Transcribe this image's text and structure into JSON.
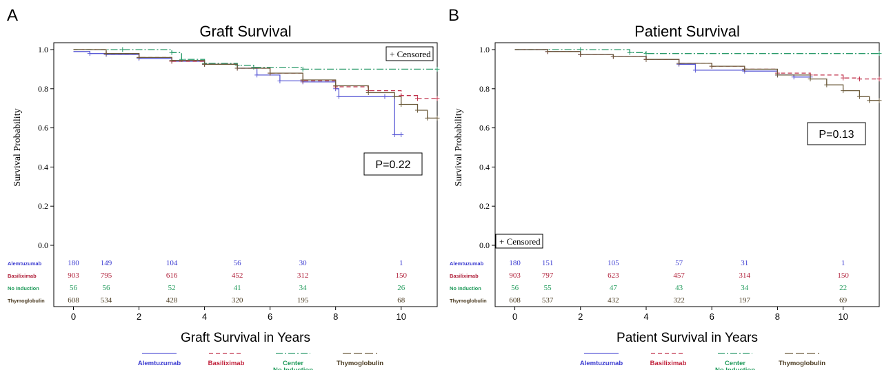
{
  "chart_data": [
    {
      "type": "line",
      "panel_letter": "A",
      "title": "Graft Survival",
      "xlabel": "Graft Survival in Years",
      "ylabel": "Survival Probability",
      "xlim": [
        -0.6,
        11.1
      ],
      "ylim": [
        0,
        1.0
      ],
      "xticks": [
        0,
        2,
        4,
        6,
        8,
        10
      ],
      "yticks": [
        0.0,
        0.2,
        0.4,
        0.6,
        0.8,
        1.0
      ],
      "legend_position": "top-right",
      "censored_label": "+ Censored",
      "pvalue_label": "P=0.22",
      "series": [
        {
          "name": "Alemtuzumab",
          "color": "#5b5bd6",
          "dash": "solid",
          "points": [
            [
              0,
              0.99
            ],
            [
              0.5,
              0.98
            ],
            [
              1,
              0.975
            ],
            [
              2,
              0.955
            ],
            [
              3,
              0.94
            ],
            [
              4,
              0.925
            ],
            [
              5,
              0.905
            ],
            [
              5.6,
              0.87
            ],
            [
              6.3,
              0.84
            ],
            [
              7,
              0.835
            ],
            [
              8,
              0.8
            ],
            [
              8.1,
              0.76
            ],
            [
              9.5,
              0.76
            ],
            [
              9.8,
              0.565
            ],
            [
              10,
              0.565
            ]
          ]
        },
        {
          "name": "Basiliximab",
          "color": "#c0304a",
          "dash": "6,4",
          "points": [
            [
              0,
              1.0
            ],
            [
              1,
              0.98
            ],
            [
              2,
              0.96
            ],
            [
              3,
              0.94
            ],
            [
              4,
              0.925
            ],
            [
              5,
              0.905
            ],
            [
              6,
              0.88
            ],
            [
              7,
              0.84
            ],
            [
              8,
              0.81
            ],
            [
              9,
              0.79
            ],
            [
              10,
              0.765
            ],
            [
              10.5,
              0.75
            ],
            [
              11.1,
              0.75
            ]
          ]
        },
        {
          "name": "No Induction",
          "color": "#2a9a6a",
          "dash": "10,3,2,3",
          "points": [
            [
              0,
              1.0
            ],
            [
              1.5,
              1.0
            ],
            [
              3,
              0.985
            ],
            [
              3.3,
              0.95
            ],
            [
              4,
              0.93
            ],
            [
              5,
              0.92
            ],
            [
              5.5,
              0.91
            ],
            [
              7,
              0.9
            ],
            [
              11.1,
              0.9
            ]
          ]
        },
        {
          "name": "Thymoglobulin",
          "color": "#6b5a3a",
          "dash": "solid",
          "points": [
            [
              0,
              1.0
            ],
            [
              1,
              0.98
            ],
            [
              2,
              0.96
            ],
            [
              3,
              0.945
            ],
            [
              4,
              0.925
            ],
            [
              5,
              0.905
            ],
            [
              6,
              0.88
            ],
            [
              7,
              0.845
            ],
            [
              8,
              0.815
            ],
            [
              9,
              0.78
            ],
            [
              9.8,
              0.76
            ],
            [
              10,
              0.72
            ],
            [
              10.5,
              0.69
            ],
            [
              10.8,
              0.65
            ],
            [
              11.1,
              0.65
            ]
          ]
        }
      ],
      "risk_table": {
        "columns_x": [
          0,
          1,
          3,
          5,
          7,
          10
        ],
        "rows": [
          {
            "label": "Alemtuzumab",
            "color": "#3a3ad0",
            "values": [
              "180",
              "149",
              "104",
              "56",
              "30",
              "1"
            ]
          },
          {
            "label": "Basiliximab",
            "color": "#b0203a",
            "values": [
              "903",
              "795",
              "616",
              "452",
              "312",
              "150"
            ]
          },
          {
            "label": "No Induction",
            "color": "#1f9a5a",
            "values": [
              "56",
              "56",
              "52",
              "41",
              "34",
              "26"
            ]
          },
          {
            "label": "Thymoglobulin",
            "color": "#4a3a20",
            "values": [
              "608",
              "534",
              "428",
              "320",
              "195",
              "68"
            ]
          }
        ]
      },
      "legend": [
        {
          "label": "Alemtuzumab",
          "label2": "",
          "color": "#3a3ad0",
          "line_color": "#5b5bd6",
          "dash": "solid"
        },
        {
          "label": "Basiliximab",
          "label2": "",
          "color": "#c0203a",
          "line_color": "#c0304a",
          "dash": "6,4"
        },
        {
          "label": "Center",
          "label2": "No Induction",
          "color": "#1f9a5a",
          "line_color": "#2a9a6a",
          "dash": "10,3,2,3"
        },
        {
          "label": "Thymoglobulin",
          "label2": "",
          "color": "#4a3a20",
          "line_color": "#6b5a3a",
          "dash": "12,4"
        }
      ]
    },
    {
      "type": "line",
      "panel_letter": "B",
      "title": "Patient Survival",
      "xlabel": "Patient Survival in Years",
      "ylabel": "Survival Probability",
      "xlim": [
        -0.6,
        11.1
      ],
      "ylim": [
        0,
        1.0
      ],
      "xticks": [
        0,
        2,
        4,
        6,
        8,
        10
      ],
      "yticks": [
        0.0,
        0.2,
        0.4,
        0.6,
        0.8,
        1.0
      ],
      "legend_position": "bottom-left",
      "censored_label": "+ Censored",
      "pvalue_label": "P=0.13",
      "series": [
        {
          "name": "Alemtuzumab",
          "color": "#5b5bd6",
          "dash": "solid",
          "points": [
            [
              0,
              1.0
            ],
            [
              1,
              0.99
            ],
            [
              2,
              0.975
            ],
            [
              3,
              0.965
            ],
            [
              4,
              0.95
            ],
            [
              5,
              0.925
            ],
            [
              5.5,
              0.895
            ],
            [
              7,
              0.89
            ],
            [
              8,
              0.87
            ],
            [
              8.5,
              0.86
            ],
            [
              9,
              0.86
            ]
          ]
        },
        {
          "name": "Basiliximab",
          "color": "#c0304a",
          "dash": "6,4",
          "points": [
            [
              0,
              1.0
            ],
            [
              1,
              0.99
            ],
            [
              2,
              0.975
            ],
            [
              3,
              0.965
            ],
            [
              4,
              0.95
            ],
            [
              5,
              0.93
            ],
            [
              6,
              0.915
            ],
            [
              7,
              0.9
            ],
            [
              8,
              0.88
            ],
            [
              9,
              0.87
            ],
            [
              10,
              0.855
            ],
            [
              10.5,
              0.85
            ],
            [
              11.1,
              0.85
            ]
          ]
        },
        {
          "name": "No Induction",
          "color": "#2a9a6a",
          "dash": "10,3,2,3",
          "points": [
            [
              0,
              1.0
            ],
            [
              2,
              1.0
            ],
            [
              3.5,
              0.985
            ],
            [
              4,
              0.98
            ],
            [
              11.1,
              0.98
            ]
          ]
        },
        {
          "name": "Thymoglobulin",
          "color": "#6b5a3a",
          "dash": "solid",
          "points": [
            [
              0,
              1.0
            ],
            [
              1,
              0.99
            ],
            [
              2,
              0.975
            ],
            [
              3,
              0.965
            ],
            [
              4,
              0.95
            ],
            [
              5,
              0.93
            ],
            [
              6,
              0.915
            ],
            [
              7,
              0.9
            ],
            [
              8,
              0.87
            ],
            [
              9,
              0.85
            ],
            [
              9.5,
              0.82
            ],
            [
              10,
              0.79
            ],
            [
              10.5,
              0.76
            ],
            [
              10.8,
              0.74
            ],
            [
              11.1,
              0.74
            ]
          ]
        }
      ],
      "risk_table": {
        "columns_x": [
          0,
          1,
          3,
          5,
          7,
          10
        ],
        "rows": [
          {
            "label": "Alemtuzumab",
            "color": "#3a3ad0",
            "values": [
              "180",
              "151",
              "105",
              "57",
              "31",
              "1"
            ]
          },
          {
            "label": "Basiliximab",
            "color": "#b0203a",
            "values": [
              "903",
              "797",
              "623",
              "457",
              "314",
              "150"
            ]
          },
          {
            "label": "No Induction",
            "color": "#1f9a5a",
            "values": [
              "56",
              "55",
              "47",
              "43",
              "34",
              "22"
            ]
          },
          {
            "label": "Thymoglobulin",
            "color": "#4a3a20",
            "values": [
              "608",
              "537",
              "432",
              "322",
              "197",
              "69"
            ]
          }
        ]
      },
      "legend": [
        {
          "label": "Alemtuzumab",
          "label2": "",
          "color": "#3a3ad0",
          "line_color": "#5b5bd6",
          "dash": "solid"
        },
        {
          "label": "Basiliximab",
          "label2": "",
          "color": "#c0203a",
          "line_color": "#c0304a",
          "dash": "6,4"
        },
        {
          "label": "Center",
          "label2": "No Induction",
          "color": "#1f9a5a",
          "line_color": "#2a9a6a",
          "dash": "10,3,2,3"
        },
        {
          "label": "Thymoglobulin",
          "label2": "",
          "color": "#4a3a20",
          "line_color": "#6b5a3a",
          "dash": "12,4"
        }
      ]
    }
  ]
}
